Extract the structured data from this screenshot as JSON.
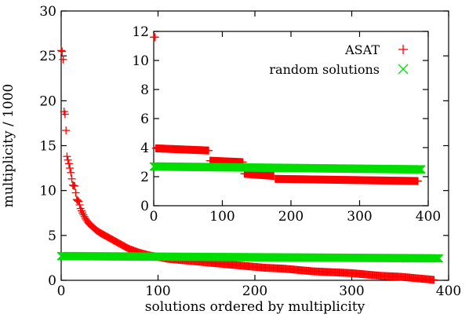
{
  "chart_data": [
    {
      "id": "main",
      "type": "scatter",
      "xlabel": "solutions ordered by multiplicity",
      "ylabel": "multiplicity / 1000",
      "xlim": [
        0,
        400
      ],
      "ylim": [
        0,
        30
      ],
      "xticks": [
        0,
        100,
        200,
        300,
        400
      ],
      "yticks": [
        0,
        5,
        10,
        15,
        20,
        25,
        30
      ],
      "series": [
        {
          "name": "ASAT",
          "marker": "plus",
          "color": "#ff0000",
          "points": [
            [
              0,
              25.6
            ],
            [
              1,
              25.5
            ],
            [
              2,
              24.6
            ],
            [
              3,
              18.8
            ],
            [
              4,
              18.5
            ],
            [
              5,
              16.7
            ],
            [
              6,
              13.8
            ],
            [
              8,
              13.0
            ],
            [
              10,
              12.0
            ],
            [
              12,
              10.6
            ],
            [
              14,
              10.5
            ],
            [
              16,
              9.0
            ],
            [
              18,
              8.8
            ],
            [
              20,
              8.0
            ],
            [
              22,
              7.5
            ],
            [
              25,
              6.9
            ],
            [
              28,
              6.4
            ],
            [
              32,
              6.0
            ],
            [
              36,
              5.6
            ],
            [
              40,
              5.3
            ],
            [
              45,
              5.0
            ],
            [
              50,
              4.7
            ],
            [
              55,
              4.4
            ],
            [
              60,
              4.1
            ],
            [
              65,
              3.8
            ],
            [
              70,
              3.5
            ],
            [
              75,
              3.3
            ],
            [
              80,
              3.1
            ],
            [
              90,
              2.8
            ],
            [
              100,
              2.6
            ],
            [
              110,
              2.4
            ],
            [
              120,
              2.3
            ],
            [
              130,
              2.2
            ],
            [
              140,
              2.1
            ],
            [
              150,
              2.0
            ],
            [
              160,
              1.9
            ],
            [
              170,
              1.8
            ],
            [
              180,
              1.7
            ],
            [
              190,
              1.6
            ],
            [
              200,
              1.5
            ],
            [
              210,
              1.4
            ],
            [
              220,
              1.35
            ],
            [
              230,
              1.3
            ],
            [
              240,
              1.2
            ],
            [
              250,
              1.1
            ],
            [
              260,
              1.0
            ],
            [
              270,
              0.95
            ],
            [
              280,
              0.9
            ],
            [
              290,
              0.85
            ],
            [
              300,
              0.8
            ],
            [
              310,
              0.7
            ],
            [
              320,
              0.6
            ],
            [
              330,
              0.5
            ],
            [
              340,
              0.45
            ],
            [
              350,
              0.4
            ],
            [
              360,
              0.3
            ],
            [
              370,
              0.2
            ],
            [
              375,
              0.15
            ],
            [
              380,
              0.1
            ],
            [
              385,
              0.05
            ]
          ]
        },
        {
          "name": "random solutions",
          "marker": "cross",
          "color": "#00dd00",
          "x_start": 0,
          "x_end": 390,
          "y_start": 2.7,
          "y_end": 2.45
        }
      ]
    },
    {
      "id": "inset",
      "type": "scatter",
      "xlim": [
        0,
        400
      ],
      "ylim": [
        0,
        12
      ],
      "xticks": [
        0,
        100,
        200,
        300,
        400
      ],
      "yticks": [
        0,
        2,
        4,
        6,
        8,
        10,
        12
      ],
      "legend": "top-right",
      "series": [
        {
          "name": "ASAT",
          "marker": "plus",
          "color": "#ff0000",
          "segments": [
            {
              "x_start": 0,
              "x_end": 2,
              "y": 11.6
            },
            {
              "x_start": 3,
              "x_end": 80,
              "y_start": 3.95,
              "y_end": 3.8
            },
            {
              "x_start": 82,
              "x_end": 130,
              "y_start": 3.1,
              "y_end": 3.0
            },
            {
              "x_start": 132,
              "x_end": 175,
              "y_start": 2.2,
              "y_end": 2.05
            },
            {
              "x_start": 177,
              "x_end": 385,
              "y_start": 1.85,
              "y_end": 1.7
            }
          ]
        },
        {
          "name": "random solutions",
          "marker": "cross",
          "color": "#00dd00",
          "x_start": 0,
          "x_end": 390,
          "y_start": 2.7,
          "y_end": 2.5
        }
      ]
    }
  ]
}
